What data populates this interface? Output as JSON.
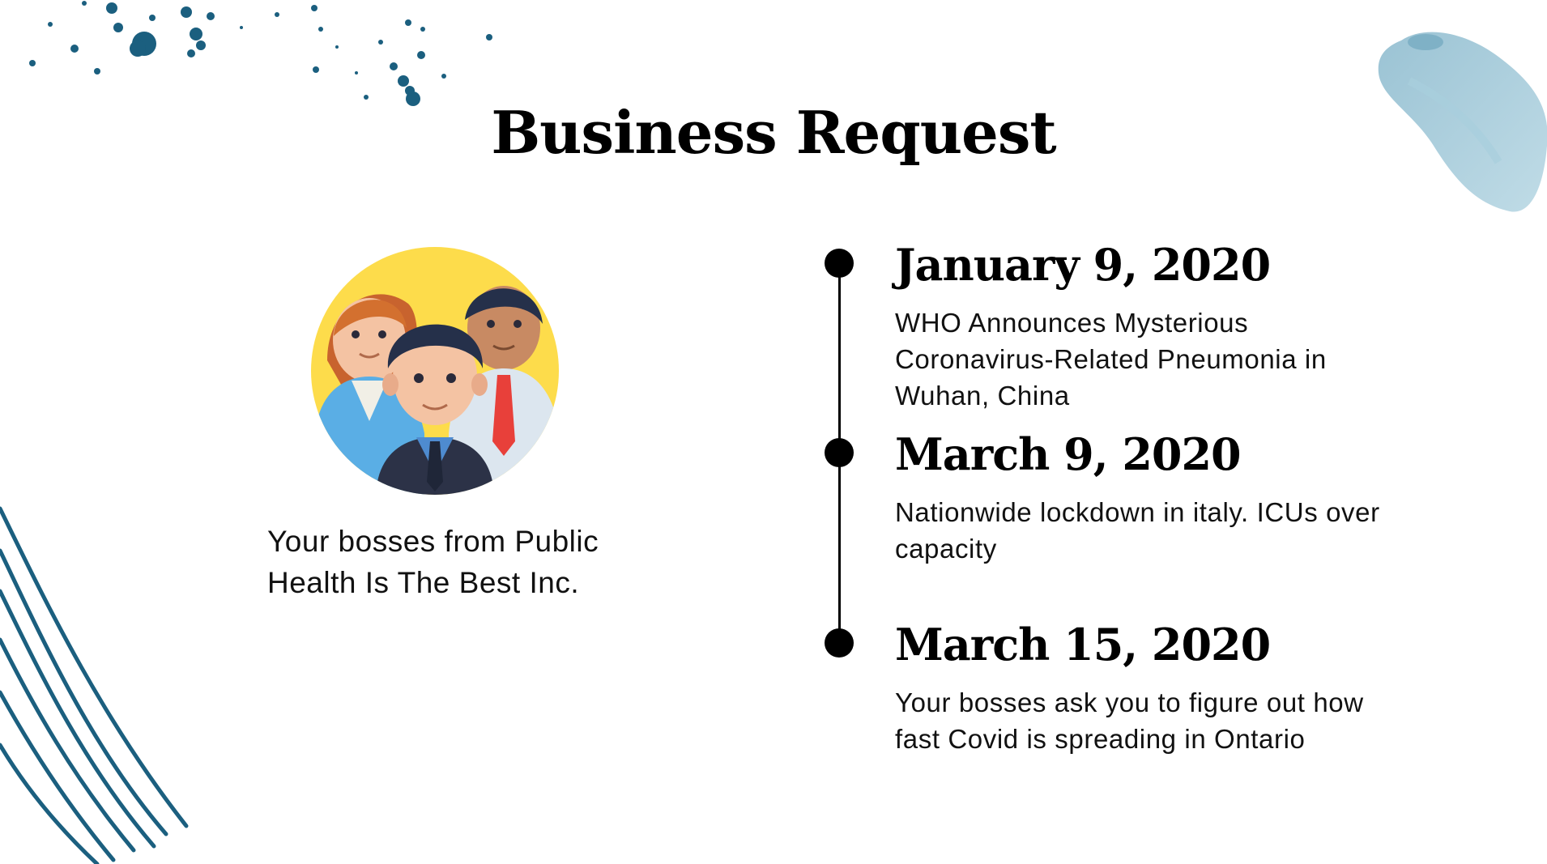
{
  "slide": {
    "title": "Business Request",
    "caption": "Your bosses from Public Health Is The Best Inc.",
    "timeline": [
      {
        "date": "January 9, 2020",
        "description": "WHO Announces Mysterious Coronavirus-Related Pneumonia in Wuhan, China"
      },
      {
        "date": "March 9, 2020",
        "description": "Nationwide lockdown in italy. ICUs over capacity"
      },
      {
        "date": "March 15, 2020",
        "description": "Your bosses ask you to figure out how fast Covid is spreading in Ontario"
      }
    ]
  },
  "icons": {
    "illustration": "team-people-icon",
    "timeline_marker": "timeline-dot"
  },
  "colors": {
    "text": "#000000",
    "accent_dark_blue": "#1b5f7f",
    "accent_light_blue": "#9cc5d6",
    "avatar_background": "#fddc4b"
  }
}
